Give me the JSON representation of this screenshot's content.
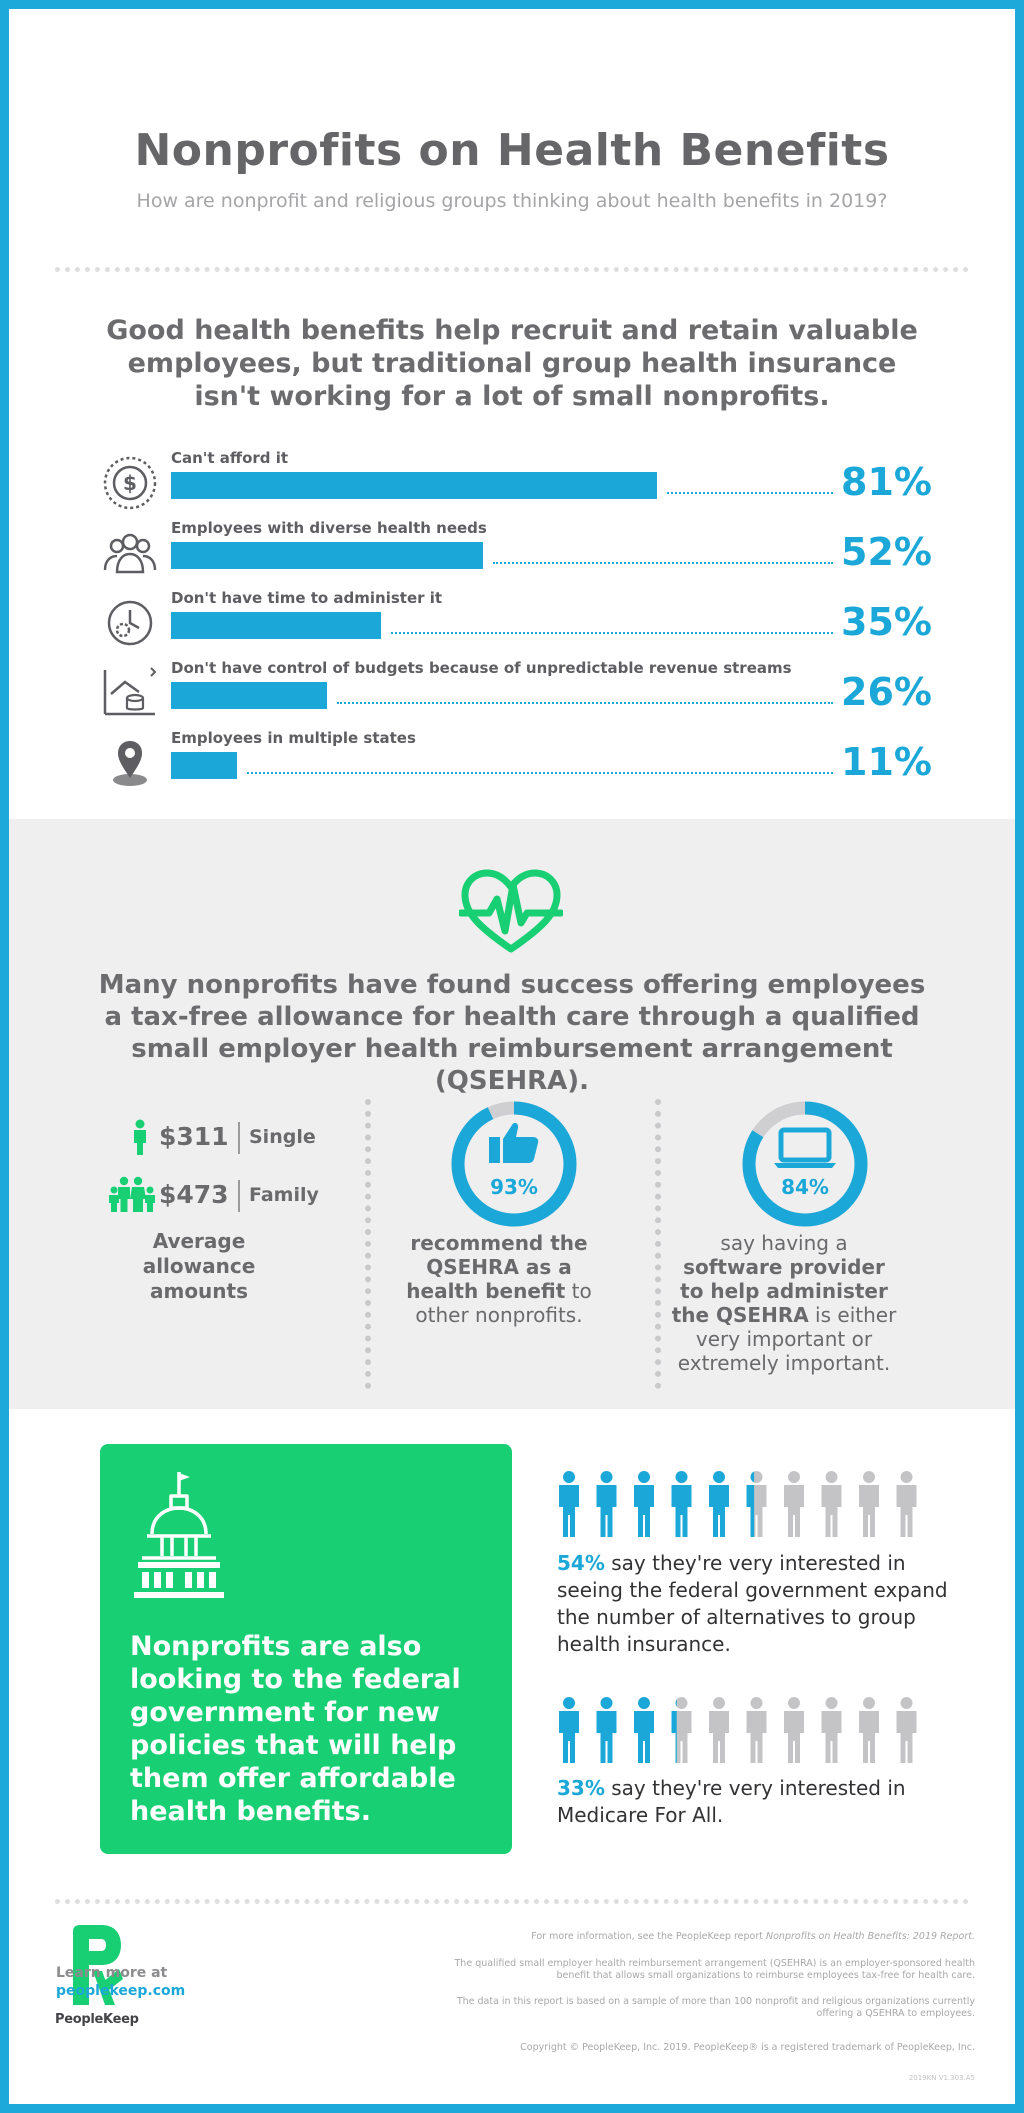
{
  "header": {
    "title": "Nonprofits on Health Benefits",
    "subtitle": "How are nonprofit and religious groups thinking about health benefits in 2019?"
  },
  "intro": {
    "text": "Good health benefits help recruit and retain valuable employees, but traditional group health insurance isn't working for a lot of small nonprofits."
  },
  "chart_data": {
    "type": "bar",
    "orientation": "horizontal",
    "categories": [
      "Can't afford it",
      "Employees with diverse health needs",
      "Don't have time to administer it",
      "Don't have control of budgets because of unpredictable revenue streams",
      "Employees in multiple states"
    ],
    "values": [
      81,
      52,
      35,
      26,
      11
    ],
    "value_labels": [
      "81%",
      "52%",
      "35%",
      "26%",
      "11%"
    ],
    "icons": [
      "dollar-coin-icon",
      "group-people-icon",
      "clock-gear-icon",
      "house-coins-chart-icon",
      "map-pin-icon"
    ],
    "unit": "%",
    "xlim": [
      0,
      100
    ],
    "color": "#1ba8d8"
  },
  "qsehra": {
    "icon": "heart-pulse-icon",
    "text": "Many nonprofits have found success offering employees a tax-free allowance for health care through a qualified small employer health reimbursement arrangement (QSEHRA).",
    "single_amount": "$311",
    "single_label": "Single",
    "family_amount": "$473",
    "family_label": "Family",
    "avg_label": "Average allowance amounts",
    "recommend_pct": 93,
    "recommend_pct_label": "93%",
    "recommend_bold": "recommend the QSEHRA as a health benefit",
    "recommend_rest": " to other nonprofits.",
    "software_pct": 84,
    "software_pct_label": "84%",
    "software_pre": "say having a ",
    "software_bold": "software provider to help administer the QSEHRA",
    "software_rest": " is either very important or extremely important."
  },
  "federal": {
    "box_text": "Nonprofits are also looking to the federal government for new policies that will help them offer affordable health benefits.",
    "stat1_pct": 54,
    "stat1_pct_label": "54%",
    "stat1_text": " say they're very interested in seeing the federal government expand the number of alternatives to group health insurance.",
    "stat2_pct": 33,
    "stat2_pct_label": "33%",
    "stat2_text": " say they're very interested in Medicare For All."
  },
  "footer": {
    "more_info_pre": "For more information, see the PeopleKeep report ",
    "more_info_italic": "Nonprofits on Health Benefits: 2019 Report.",
    "definition": "The qualified small employer health reimbursement arrangement (QSEHRA) is an employer-sponsored health benefit that allows small organizations to reimburse employees tax-free for health care.",
    "sample": "The data in this report is based on a sample of more than 100 nonprofit and religious organizations currently offering a QSEHRA to employees.",
    "copyright": "Copyright © PeopleKeep, Inc. 2019. PeopleKeep® is a registered trademark of PeopleKeep, Inc.",
    "code": "2019KN V1.303.A5",
    "logo_text": "PeopleKeep",
    "learn_more": "Learn more at",
    "url": "peoplekeep.com"
  },
  "colors": {
    "blue": "#1ba8d8",
    "green": "#18cf73",
    "gray_text": "#6c6c6f",
    "person_gray": "#c4c4c6"
  }
}
